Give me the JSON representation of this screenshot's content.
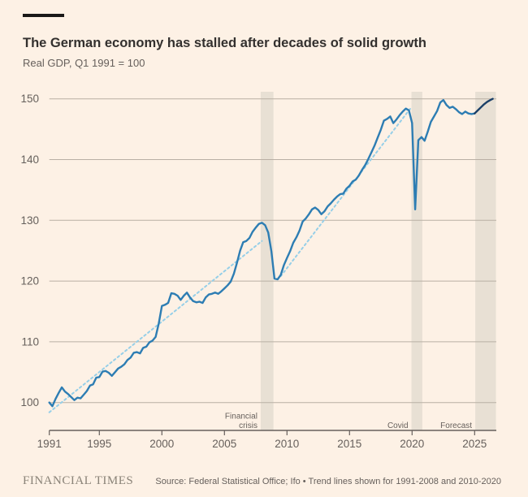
{
  "header": {
    "title": "The German economy has stalled after decades of solid growth",
    "subtitle": "Real GDP, Q1 1991 = 100"
  },
  "footer": {
    "brand": "FINANCIAL TIMES",
    "source": "Source: Federal Statistical Office; Ifo • Trend lines shown for 1991-2008 and 2010-2020"
  },
  "chart_data": {
    "type": "line",
    "title": "The German economy has stalled after decades of solid growth",
    "subtitle": "Real GDP, Q1 1991 = 100",
    "grid": "horizontal",
    "legend": "none",
    "x_range": [
      1990.8,
      2026.7
    ],
    "y_range": [
      97,
      152
    ],
    "x_ticks": [
      {
        "v": 1991,
        "label": "1991"
      },
      {
        "v": 1995,
        "label": "1995"
      },
      {
        "v": 2000,
        "label": "2000"
      },
      {
        "v": 2005,
        "label": "2005"
      },
      {
        "v": 2010,
        "label": "2010"
      },
      {
        "v": 2015,
        "label": "2015"
      },
      {
        "v": 2020,
        "label": "2020"
      },
      {
        "v": 2025,
        "label": "2025"
      }
    ],
    "y_ticks": [
      {
        "v": 100,
        "label": "100"
      },
      {
        "v": 110,
        "label": "110"
      },
      {
        "v": 120,
        "label": "120"
      },
      {
        "v": 130,
        "label": "130"
      },
      {
        "v": 140,
        "label": "140"
      },
      {
        "v": 150,
        "label": "150"
      }
    ],
    "bands": [
      {
        "name": "financial-crisis",
        "label_lines": [
          "Financial",
          "crisis"
        ],
        "from": 2007.9,
        "to": 2008.92
      },
      {
        "name": "covid",
        "label_lines": [
          "Covid"
        ],
        "from": 2019.95,
        "to": 2020.82
      },
      {
        "name": "forecast",
        "label_lines": [
          "Forecast"
        ],
        "from": 2025.05,
        "to": 2026.7
      }
    ],
    "colors": {
      "band": "#e8e0d4",
      "grid": "#b9afa4",
      "axis": "#66605c",
      "text": "#66605c",
      "actual": "#2d7db3",
      "forecast": "#1b4068",
      "trend": "#96cfe8"
    },
    "series": [
      {
        "name": "trend-1991-2008",
        "role": "trend",
        "color": "#96cfe8",
        "width": 2,
        "dash": "2.5,3.5",
        "points": [
          [
            1991.0,
            98.4
          ],
          [
            2008.0,
            126.6
          ]
        ]
      },
      {
        "name": "trend-2010-2020",
        "role": "trend",
        "color": "#96cfe8",
        "width": 2,
        "dash": "2.5,3.5",
        "points": [
          [
            2009.5,
            120.8
          ],
          [
            2019.9,
            148.5
          ]
        ]
      },
      {
        "name": "real-gdp",
        "role": "actual",
        "color": "#2d7db3",
        "width": 2.4,
        "dash": null,
        "points": [
          [
            1991.0,
            100.0
          ],
          [
            1991.25,
            99.4
          ],
          [
            1991.5,
            100.6
          ],
          [
            1991.75,
            101.6
          ],
          [
            1992.0,
            102.5
          ],
          [
            1992.25,
            101.8
          ],
          [
            1992.5,
            101.4
          ],
          [
            1992.75,
            100.9
          ],
          [
            1993.0,
            100.4
          ],
          [
            1993.25,
            100.8
          ],
          [
            1993.5,
            100.7
          ],
          [
            1993.75,
            101.3
          ],
          [
            1994.0,
            101.9
          ],
          [
            1994.25,
            102.8
          ],
          [
            1994.5,
            103.0
          ],
          [
            1994.75,
            104.1
          ],
          [
            1995.0,
            104.2
          ],
          [
            1995.25,
            105.1
          ],
          [
            1995.5,
            105.2
          ],
          [
            1995.75,
            104.9
          ],
          [
            1996.0,
            104.4
          ],
          [
            1996.25,
            105.0
          ],
          [
            1996.5,
            105.6
          ],
          [
            1996.75,
            105.9
          ],
          [
            1997.0,
            106.3
          ],
          [
            1997.25,
            107.0
          ],
          [
            1997.5,
            107.4
          ],
          [
            1997.75,
            108.2
          ],
          [
            1998.0,
            108.3
          ],
          [
            1998.25,
            108.1
          ],
          [
            1998.5,
            109.0
          ],
          [
            1998.75,
            109.2
          ],
          [
            1999.0,
            109.9
          ],
          [
            1999.25,
            110.2
          ],
          [
            1999.5,
            110.8
          ],
          [
            1999.75,
            113.0
          ],
          [
            2000.0,
            115.9
          ],
          [
            2000.25,
            116.1
          ],
          [
            2000.5,
            116.4
          ],
          [
            2000.75,
            118.0
          ],
          [
            2001.0,
            117.9
          ],
          [
            2001.25,
            117.6
          ],
          [
            2001.5,
            116.9
          ],
          [
            2001.75,
            117.6
          ],
          [
            2002.0,
            118.1
          ],
          [
            2002.25,
            117.3
          ],
          [
            2002.5,
            116.7
          ],
          [
            2002.75,
            116.5
          ],
          [
            2003.0,
            116.6
          ],
          [
            2003.25,
            116.4
          ],
          [
            2003.5,
            117.3
          ],
          [
            2003.75,
            117.8
          ],
          [
            2004.0,
            117.9
          ],
          [
            2004.25,
            118.1
          ],
          [
            2004.5,
            117.9
          ],
          [
            2004.75,
            118.3
          ],
          [
            2005.0,
            118.8
          ],
          [
            2005.25,
            119.3
          ],
          [
            2005.5,
            119.9
          ],
          [
            2005.75,
            121.2
          ],
          [
            2006.0,
            123.0
          ],
          [
            2006.25,
            125.0
          ],
          [
            2006.5,
            126.4
          ],
          [
            2006.75,
            126.6
          ],
          [
            2007.0,
            127.1
          ],
          [
            2007.25,
            128.1
          ],
          [
            2007.5,
            128.8
          ],
          [
            2007.75,
            129.4
          ],
          [
            2008.0,
            129.6
          ],
          [
            2008.25,
            129.2
          ],
          [
            2008.5,
            128.0
          ],
          [
            2008.75,
            124.9
          ],
          [
            2009.0,
            120.4
          ],
          [
            2009.25,
            120.3
          ],
          [
            2009.5,
            121.0
          ],
          [
            2009.75,
            122.6
          ],
          [
            2010.0,
            123.8
          ],
          [
            2010.25,
            124.9
          ],
          [
            2010.5,
            126.3
          ],
          [
            2010.75,
            127.2
          ],
          [
            2011.0,
            128.3
          ],
          [
            2011.25,
            129.8
          ],
          [
            2011.5,
            130.3
          ],
          [
            2011.75,
            131.0
          ],
          [
            2012.0,
            131.8
          ],
          [
            2012.25,
            132.1
          ],
          [
            2012.5,
            131.7
          ],
          [
            2012.75,
            131.0
          ],
          [
            2013.0,
            131.5
          ],
          [
            2013.25,
            132.3
          ],
          [
            2013.5,
            132.8
          ],
          [
            2013.75,
            133.4
          ],
          [
            2014.0,
            133.9
          ],
          [
            2014.25,
            134.3
          ],
          [
            2014.5,
            134.4
          ],
          [
            2014.75,
            135.2
          ],
          [
            2015.0,
            135.7
          ],
          [
            2015.25,
            136.4
          ],
          [
            2015.5,
            136.7
          ],
          [
            2015.75,
            137.4
          ],
          [
            2016.0,
            138.3
          ],
          [
            2016.25,
            139.1
          ],
          [
            2016.5,
            140.1
          ],
          [
            2016.75,
            141.2
          ],
          [
            2017.0,
            142.3
          ],
          [
            2017.25,
            143.6
          ],
          [
            2017.5,
            144.9
          ],
          [
            2017.75,
            146.4
          ],
          [
            2018.0,
            146.7
          ],
          [
            2018.25,
            147.1
          ],
          [
            2018.5,
            146.0
          ],
          [
            2018.75,
            146.6
          ],
          [
            2019.0,
            147.3
          ],
          [
            2019.25,
            147.9
          ],
          [
            2019.5,
            148.4
          ],
          [
            2019.75,
            148.1
          ],
          [
            2020.0,
            146.0
          ],
          [
            2020.25,
            131.8
          ],
          [
            2020.5,
            143.2
          ],
          [
            2020.75,
            143.7
          ],
          [
            2021.0,
            143.1
          ],
          [
            2021.25,
            144.6
          ],
          [
            2021.5,
            146.2
          ],
          [
            2021.75,
            147.1
          ],
          [
            2022.0,
            148.0
          ],
          [
            2022.25,
            149.4
          ],
          [
            2022.5,
            149.8
          ],
          [
            2022.75,
            149.0
          ],
          [
            2023.0,
            148.5
          ],
          [
            2023.25,
            148.7
          ],
          [
            2023.5,
            148.3
          ],
          [
            2023.75,
            147.8
          ],
          [
            2024.0,
            147.5
          ],
          [
            2024.25,
            147.9
          ],
          [
            2024.5,
            147.6
          ],
          [
            2024.75,
            147.5
          ],
          [
            2025.0,
            147.6
          ]
        ]
      },
      {
        "name": "real-gdp-forecast",
        "role": "forecast",
        "color": "#1b4068",
        "width": 2.4,
        "dash": null,
        "points": [
          [
            2025.0,
            147.6
          ],
          [
            2025.25,
            148.1
          ],
          [
            2025.5,
            148.6
          ],
          [
            2025.75,
            149.1
          ],
          [
            2026.0,
            149.5
          ],
          [
            2026.25,
            149.8
          ],
          [
            2026.45,
            150.0
          ]
        ]
      }
    ]
  }
}
